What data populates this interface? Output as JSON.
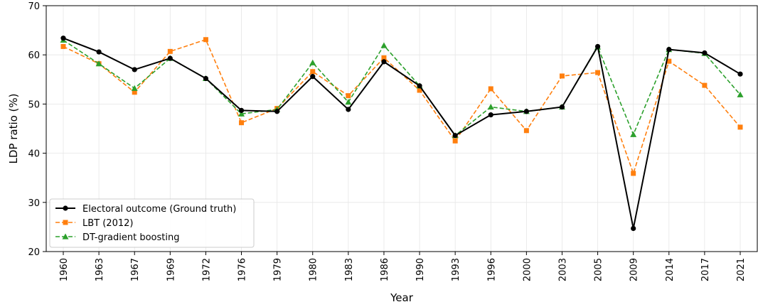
{
  "chart_data": {
    "type": "line",
    "title": "",
    "xlabel": "Year",
    "ylabel": "LDP ratio (%)",
    "ylim": [
      20,
      70
    ],
    "yticks": [
      20,
      30,
      40,
      50,
      60,
      70
    ],
    "grid": true,
    "legend_position": "bottom-left",
    "categories": [
      "1960",
      "1963",
      "1967",
      "1969",
      "1972",
      "1976",
      "1979",
      "1980",
      "1983",
      "1986",
      "1990",
      "1993",
      "1996",
      "2000",
      "2003",
      "2005",
      "2009",
      "2014",
      "2017",
      "2021"
    ],
    "series": [
      {
        "name": "Electoral outcome (Ground truth)",
        "color": "#000000",
        "marker": "circle",
        "dash": "solid",
        "values": [
          63.4,
          60.6,
          57.0,
          59.3,
          55.2,
          48.7,
          48.5,
          55.6,
          48.9,
          58.6,
          53.7,
          43.6,
          47.8,
          48.5,
          49.4,
          61.7,
          24.7,
          61.1,
          60.4,
          56.1
        ]
      },
      {
        "name": "LBT (2012)",
        "color": "#ff7f0e",
        "marker": "square",
        "dash": "dashed",
        "values": [
          61.7,
          58.2,
          52.4,
          60.7,
          63.1,
          46.2,
          49.1,
          56.6,
          51.7,
          59.4,
          52.8,
          42.5,
          53.1,
          44.6,
          55.7,
          56.4,
          35.9,
          58.7,
          53.8,
          45.3
        ]
      },
      {
        "name": "DT-gradient boosting",
        "color": "#2ca02c",
        "marker": "triangle",
        "dash": "dashed",
        "values": [
          63.0,
          58.2,
          53.2,
          59.3,
          55.2,
          48.0,
          48.9,
          58.4,
          50.4,
          61.9,
          53.7,
          43.6,
          49.4,
          48.5,
          49.4,
          61.6,
          43.8,
          61.1,
          60.3,
          51.9
        ]
      }
    ]
  }
}
